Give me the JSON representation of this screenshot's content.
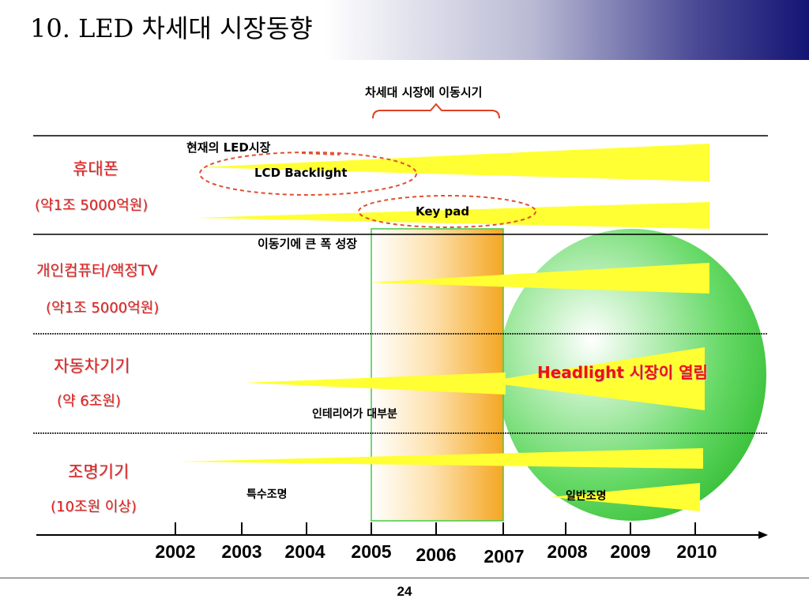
{
  "slide": {
    "title": "10. LED 차세대 시장동향",
    "page_number": "24"
  },
  "diagram": {
    "top_caption": "차세대 시장에 이동시기",
    "current_market_label": "현재의 LED시장",
    "rows": [
      {
        "name": "휴대폰",
        "size": "(약1조 5000억원)",
        "items": [
          "LCD Backlight",
          "Key pad"
        ]
      },
      {
        "name": "개인컴퓨터/액정TV",
        "size": "(약1조 5000억원)",
        "items": [
          "이동기에 큰 폭 성장"
        ]
      },
      {
        "name": "자동차기기",
        "size": "(약 6조원)",
        "items": [
          "인테리어가 대부분"
        ]
      },
      {
        "name": "조명기기",
        "size": "(10조원 이상)",
        "items": [
          "특수조명"
        ]
      }
    ],
    "future_market_label": "Headlight 시장이 열림",
    "general_lighting_label": "일반조명",
    "years": [
      "2002",
      "2003",
      "2004",
      "2005",
      "2006",
      "2007",
      "2008",
      "2009",
      "2010"
    ]
  },
  "colors": {
    "wedge_yellow": "#ffff33",
    "circle_green": "#5fd35f",
    "highlight_orange": "#f5a623",
    "label_red": "#e02020"
  }
}
